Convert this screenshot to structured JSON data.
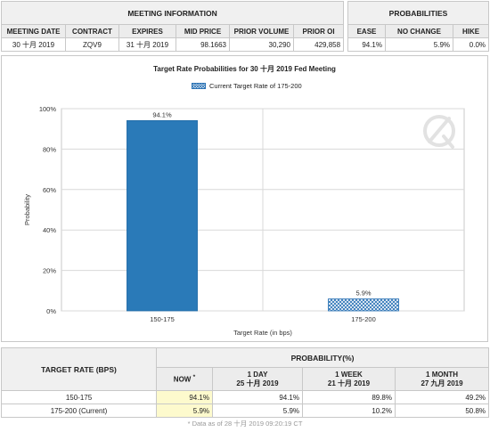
{
  "meeting_info": {
    "title": "MEETING INFORMATION",
    "headers": [
      "MEETING DATE",
      "CONTRACT",
      "EXPIRES",
      "MID PRICE",
      "PRIOR VOLUME",
      "PRIOR OI"
    ],
    "row": [
      "30 十月 2019",
      "ZQV9",
      "31 十月 2019",
      "98.1663",
      "30,290",
      "429,858"
    ]
  },
  "probabilities": {
    "title": "PROBABILITIES",
    "headers": [
      "EASE",
      "NO CHANGE",
      "HIKE"
    ],
    "row": [
      "94.1%",
      "5.9%",
      "0.0%"
    ]
  },
  "chart_data": {
    "type": "bar",
    "title": "Target Rate Probabilities for 30 十月 2019 Fed Meeting",
    "legend": "Current Target Rate of 175-200",
    "categories": [
      "150-175",
      "175-200"
    ],
    "values": [
      94.1,
      5.9
    ],
    "value_labels": [
      "94.1%",
      "5.9%"
    ],
    "highlighted_category": "175-200",
    "xlabel": "Target Rate (in bps)",
    "ylabel": "Probability",
    "ylim": [
      0,
      100
    ],
    "yticks": [
      "0%",
      "20%",
      "40%",
      "60%",
      "80%",
      "100%"
    ],
    "grid": true,
    "colors": {
      "bar": "#2a7ab8",
      "current_hatch": "#2a72b5",
      "grid": "#d9d9d9"
    }
  },
  "target_table": {
    "rate_header": "TARGET RATE (BPS)",
    "prob_header": "PROBABILITY(%)",
    "now_label": "NOW",
    "now_marker": "*",
    "columns": [
      {
        "line1": "1 DAY",
        "line2": "25 十月 2019"
      },
      {
        "line1": "1 WEEK",
        "line2": "21 十月 2019"
      },
      {
        "line1": "1 MONTH",
        "line2": "27 九月 2019"
      }
    ],
    "rows": [
      {
        "rate": "150-175",
        "now": "94.1%",
        "vals": [
          "94.1%",
          "89.8%",
          "49.2%"
        ]
      },
      {
        "rate": "175-200 (Current)",
        "now": "5.9%",
        "vals": [
          "5.9%",
          "10.2%",
          "50.8%"
        ]
      }
    ],
    "footnote": "* Data as of 28 十月 2019 09:20:19 CT"
  }
}
